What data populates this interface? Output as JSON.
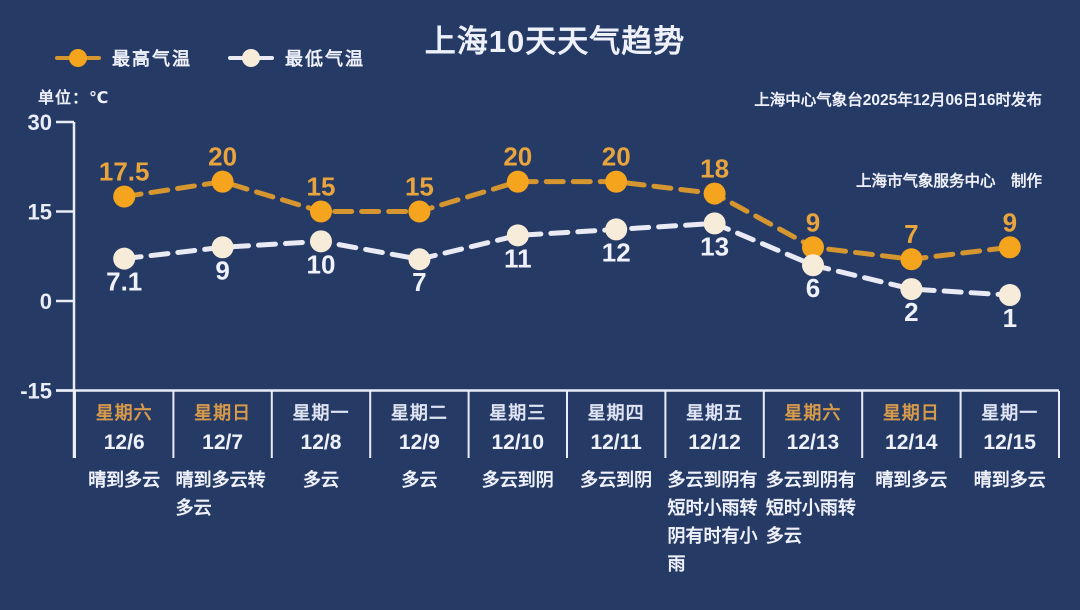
{
  "header": {
    "title": "上海10天天气趋势",
    "publisher_line1": "上海中心气象台2025年12月06日16时发布",
    "publisher_line2": "上海市气象服务中心　制作"
  },
  "unit_label": "单位：℃",
  "legend": [
    {
      "label": "最高气温",
      "color_dot": "#f4a41d",
      "color_line": "#d5952f"
    },
    {
      "label": "最低气温",
      "color_dot": "#f7ecda",
      "color_line": "#e9eaf3"
    }
  ],
  "colors": {
    "background": "#263a66",
    "axis": "#e9edf8",
    "weekend_label": "#d69a4a",
    "high_accent": "#f4a41d",
    "low_accent": "#f7ecda"
  },
  "chart_data": {
    "type": "line",
    "title": "上海10天天气趋势",
    "ylabel": "单位：℃",
    "ylim": [
      -15,
      30
    ],
    "yticks": [
      30,
      15,
      0,
      -15
    ],
    "grid": false,
    "legend_position": "top-left",
    "categories": [
      {
        "weekday": "星期六",
        "date": "12/6",
        "weather": "晴到多云",
        "weekend": true
      },
      {
        "weekday": "星期日",
        "date": "12/7",
        "weather": "晴到多云转多云",
        "weekend": true
      },
      {
        "weekday": "星期一",
        "date": "12/8",
        "weather": "多云",
        "weekend": false
      },
      {
        "weekday": "星期二",
        "date": "12/9",
        "weather": "多云",
        "weekend": false
      },
      {
        "weekday": "星期三",
        "date": "12/10",
        "weather": "多云到阴",
        "weekend": false
      },
      {
        "weekday": "星期四",
        "date": "12/11",
        "weather": "多云到阴",
        "weekend": false
      },
      {
        "weekday": "星期五",
        "date": "12/12",
        "weather": "多云到阴有短时小雨转阴有时有小雨",
        "weekend": false
      },
      {
        "weekday": "星期六",
        "date": "12/13",
        "weather": "多云到阴有短时小雨转多云",
        "weekend": true
      },
      {
        "weekday": "星期日",
        "date": "12/14",
        "weather": "晴到多云",
        "weekend": true
      },
      {
        "weekday": "星期一",
        "date": "12/15",
        "weather": "晴到多云",
        "weekend": false
      }
    ],
    "series": [
      {
        "name": "最高气温",
        "values": [
          17.5,
          20,
          15,
          15,
          20,
          20,
          18,
          9,
          7,
          9
        ],
        "dot_color": "#f4a41d",
        "line_color": "#d5952f",
        "label_color": "#e8a43d",
        "label_position": "above"
      },
      {
        "name": "最低气温",
        "values": [
          7.1,
          9,
          10,
          7,
          11,
          12,
          13,
          6,
          2,
          1
        ],
        "dot_color": "#f7ecda",
        "line_color": "#e9eaf3",
        "label_color": "#eff1fb",
        "label_position": "below"
      }
    ]
  }
}
